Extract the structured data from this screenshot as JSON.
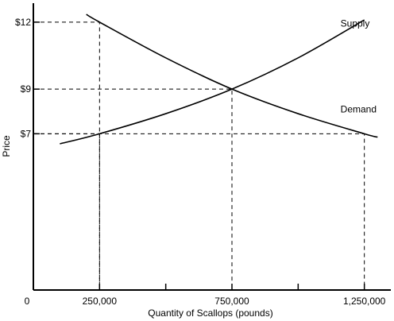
{
  "chart_data": {
    "type": "line",
    "xlabel": "Quantity of Scallops (pounds)",
    "ylabel": "Price",
    "origin_label": "0",
    "x_ticks": [
      {
        "value": 250000,
        "label": "250,000"
      },
      {
        "value": 500000,
        "label": ""
      },
      {
        "value": 750000,
        "label": "750,000"
      },
      {
        "value": 1000000,
        "label": ""
      },
      {
        "value": 1250000,
        "label": "1,250,000"
      }
    ],
    "y_ticks": [
      {
        "value": 7,
        "label": "$7"
      },
      {
        "value": 9,
        "label": "$9"
      },
      {
        "value": 12,
        "label": "$12"
      }
    ],
    "xlim": [
      0,
      1350000
    ],
    "ylim": [
      0,
      12.85
    ],
    "grid": false,
    "series": [
      {
        "name": "Supply",
        "label_at": {
          "x": 1160000,
          "y": 11.8
        },
        "points": [
          {
            "x": 100000,
            "y": 6.55
          },
          {
            "x": 250000,
            "y": 7.0
          },
          {
            "x": 500000,
            "y": 7.9
          },
          {
            "x": 750000,
            "y": 9.0
          },
          {
            "x": 1000000,
            "y": 10.4
          },
          {
            "x": 1250000,
            "y": 12.1
          }
        ]
      },
      {
        "name": "Demand",
        "label_at": {
          "x": 1160000,
          "y": 7.95
        },
        "points": [
          {
            "x": 200000,
            "y": 12.35
          },
          {
            "x": 250000,
            "y": 12.0
          },
          {
            "x": 500000,
            "y": 10.4
          },
          {
            "x": 750000,
            "y": 9.0
          },
          {
            "x": 1000000,
            "y": 7.9
          },
          {
            "x": 1250000,
            "y": 7.0
          },
          {
            "x": 1300000,
            "y": 6.85
          }
        ]
      }
    ],
    "guides": [
      {
        "x": 250000,
        "y": 12
      },
      {
        "x": 750000,
        "y": 9
      },
      {
        "x": 250000,
        "y": 7
      },
      {
        "x": 1250000,
        "y": 7
      }
    ]
  }
}
